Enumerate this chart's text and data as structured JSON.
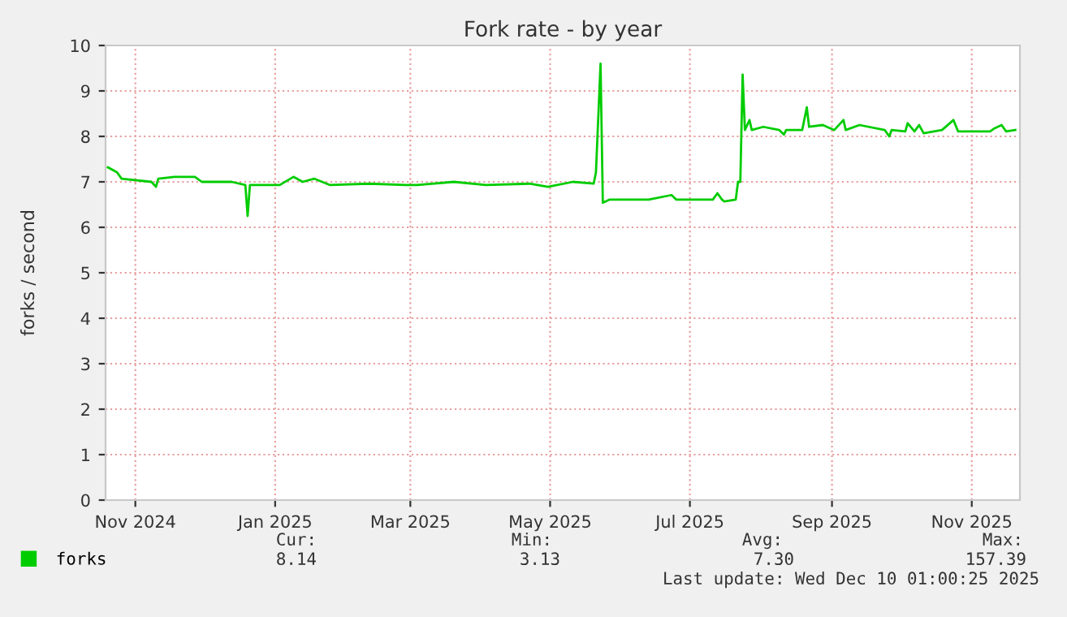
{
  "chart_data": {
    "type": "line",
    "title": "Fork rate - by year",
    "ylabel": "forks / second",
    "x": [
      "2024-10-20",
      "2024-10-24",
      "2024-10-26",
      "2024-11-08",
      "2024-11-10",
      "2024-11-11",
      "2024-11-18",
      "2024-11-27",
      "2024-11-30",
      "2024-12-13",
      "2024-12-19",
      "2024-12-20",
      "2024-12-21",
      "2024-12-25",
      "2025-01-03",
      "2025-01-09",
      "2025-01-13",
      "2025-01-18",
      "2025-01-25",
      "2025-02-11",
      "2025-02-27",
      "2025-03-04",
      "2025-03-20",
      "2025-04-03",
      "2025-04-22",
      "2025-04-30",
      "2025-05-11",
      "2025-05-20",
      "2025-05-21",
      "2025-05-23",
      "2025-05-24",
      "2025-05-27",
      "2025-06-13",
      "2025-06-23",
      "2025-06-25",
      "2025-07-11",
      "2025-07-13",
      "2025-07-15",
      "2025-07-16",
      "2025-07-21",
      "2025-07-22",
      "2025-07-23",
      "2025-07-24",
      "2025-07-25",
      "2025-07-27",
      "2025-07-28",
      "2025-08-02",
      "2025-08-09",
      "2025-08-11",
      "2025-08-12",
      "2025-08-19",
      "2025-08-21",
      "2025-08-22",
      "2025-08-28",
      "2025-09-02",
      "2025-09-06",
      "2025-09-07",
      "2025-09-13",
      "2025-09-24",
      "2025-09-26",
      "2025-09-27",
      "2025-10-03",
      "2025-10-04",
      "2025-10-07",
      "2025-10-09",
      "2025-10-11",
      "2025-10-19",
      "2025-10-24",
      "2025-10-26",
      "2025-11-09",
      "2025-11-11",
      "2025-11-14",
      "2025-11-16",
      "2025-11-20"
    ],
    "series": [
      {
        "name": "forks",
        "color": "#00cc00",
        "values": [
          7.32,
          7.21,
          7.07,
          7.0,
          6.89,
          7.07,
          7.11,
          7.11,
          7.0,
          7.0,
          6.93,
          6.25,
          6.93,
          6.93,
          6.93,
          7.11,
          7.0,
          7.07,
          6.93,
          6.96,
          6.93,
          6.93,
          7.0,
          6.93,
          6.96,
          6.89,
          7.0,
          6.96,
          7.21,
          9.6,
          6.54,
          6.61,
          6.61,
          6.71,
          6.61,
          6.61,
          6.75,
          6.61,
          6.57,
          6.61,
          7.0,
          7.0,
          9.36,
          8.14,
          8.36,
          8.14,
          8.21,
          8.14,
          8.04,
          8.14,
          8.14,
          8.64,
          8.21,
          8.25,
          8.14,
          8.36,
          8.14,
          8.25,
          8.14,
          8.0,
          8.14,
          8.11,
          8.29,
          8.11,
          8.25,
          8.07,
          8.14,
          8.36,
          8.11,
          8.11,
          8.18,
          8.25,
          8.11,
          8.14
        ]
      }
    ],
    "xlim": [
      "2024-10-19",
      "2025-11-22"
    ],
    "xticks": [
      {
        "value": "2024-11-01",
        "label": "Nov 2024"
      },
      {
        "value": "2025-01-01",
        "label": "Jan 2025"
      },
      {
        "value": "2025-03-01",
        "label": "Mar 2025"
      },
      {
        "value": "2025-05-01",
        "label": "May 2025"
      },
      {
        "value": "2025-07-01",
        "label": "Jul 2025"
      },
      {
        "value": "2025-09-01",
        "label": "Sep 2025"
      },
      {
        "value": "2025-11-01",
        "label": "Nov 2025"
      }
    ],
    "ylim": [
      0,
      10
    ],
    "yticks": [
      0,
      1,
      2,
      3,
      4,
      5,
      6,
      7,
      8,
      9,
      10
    ],
    "grid": true,
    "legend": "bottom left",
    "marker": "none",
    "line_style": "solid",
    "annotations": [
      "Cur:",
      "8.14",
      "Min:",
      "3.13",
      "Avg:",
      "7.30",
      "Max:",
      "157.39",
      "Last update: Wed Dec 10 01:00:25 2025"
    ]
  }
}
